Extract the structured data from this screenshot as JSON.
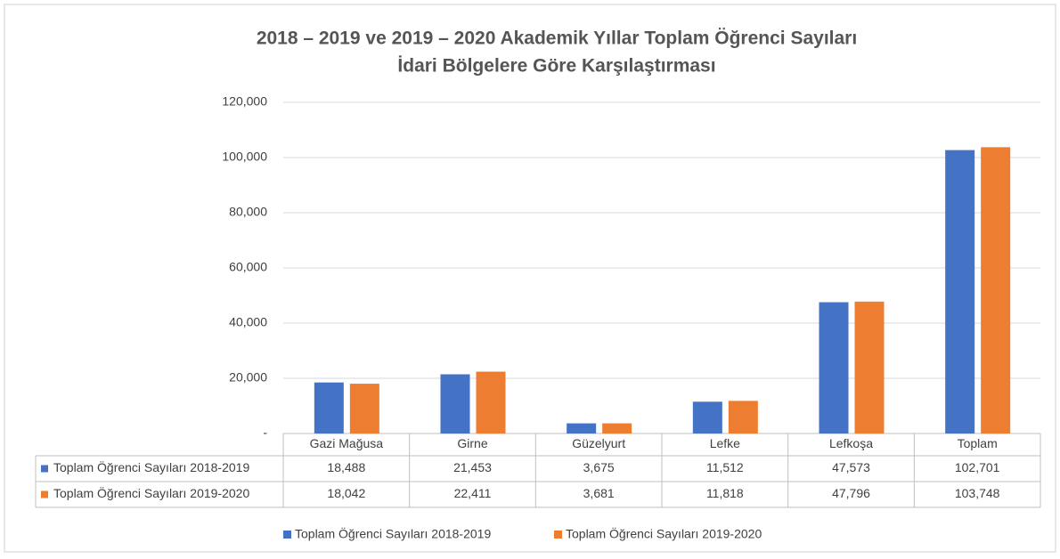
{
  "chart_data": {
    "type": "bar",
    "title": [
      "2018 – 2019 ve 2019 – 2020 Akademik Yıllar Toplam Öğrenci Sayıları",
      "İdari Bölgelere Göre Karşılaştırması"
    ],
    "categories": [
      "Gazi Mağusa",
      "Girne",
      "Güzelyurt",
      "Lefke",
      "Lefkoşa",
      "Toplam"
    ],
    "series": [
      {
        "name": "Toplam Öğrenci Sayıları 2018-2019",
        "color": "#4472c4",
        "values": [
          18488,
          21453,
          3675,
          11512,
          47573,
          102701
        ],
        "value_labels": [
          "18,488",
          "21,453",
          "3,675",
          "11,512",
          "47,573",
          "102,701"
        ]
      },
      {
        "name": "Toplam Öğrenci Sayıları 2019-2020",
        "color": "#ed7d31",
        "values": [
          18042,
          22411,
          3681,
          11818,
          47796,
          103748
        ],
        "value_labels": [
          "18,042",
          "22,411",
          "3,681",
          "11,818",
          "47,796",
          "103,748"
        ]
      }
    ],
    "ylim": [
      0,
      120000
    ],
    "yticks": [
      {
        "value": 0,
        "label": "-"
      },
      {
        "value": 20000,
        "label": "20,000"
      },
      {
        "value": 40000,
        "label": "40,000"
      },
      {
        "value": 60000,
        "label": "60,000"
      },
      {
        "value": 80000,
        "label": "80,000"
      },
      {
        "value": 100000,
        "label": "100,000"
      },
      {
        "value": 120000,
        "label": "120,000"
      }
    ],
    "grid": true
  }
}
